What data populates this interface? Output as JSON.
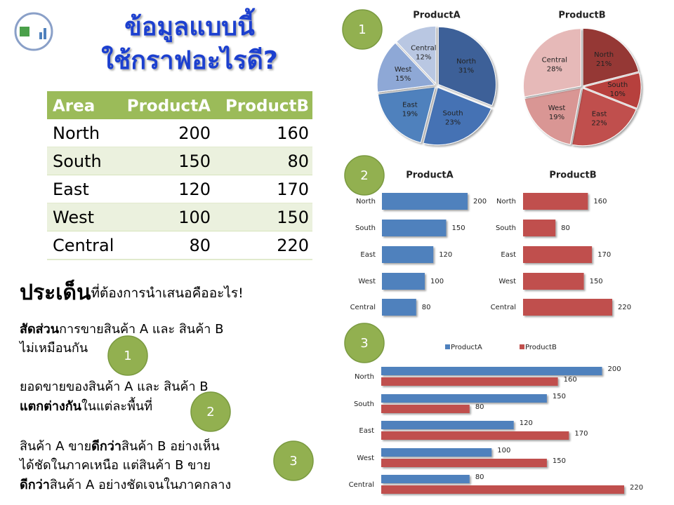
{
  "title": [
    "ข้อมูลแบบนี้",
    "ใช้กราฟอะไรดี?"
  ],
  "table": {
    "header": [
      "Area",
      "ProductA",
      "ProductB"
    ],
    "rows": [
      [
        "North",
        200,
        160
      ],
      [
        "South",
        150,
        80
      ],
      [
        "East",
        120,
        170
      ],
      [
        "West",
        100,
        150
      ],
      [
        "Central",
        80,
        220
      ]
    ]
  },
  "question": {
    "bold": "ประเด็น",
    "rest": "ที่ต้องการนำเสนอคืออะไร!"
  },
  "points": [
    {
      "number": "1",
      "lines": [
        [
          {
            "text": "สัดส่วน",
            "bold": true
          },
          {
            "text": "การขายสินค้า  A และ  สินค้า  B"
          }
        ],
        [
          {
            "text": "ไม่เหมือนกัน"
          }
        ]
      ]
    },
    {
      "number": "2",
      "lines": [
        [
          {
            "text": "ยอดขายของสินค้า  A และ  สินค้า  B"
          }
        ],
        [
          {
            "text": "แตกต่างกัน",
            "bold": true
          },
          {
            "text": "ในแต่ละพื้นที่"
          }
        ]
      ]
    },
    {
      "number": "3",
      "lines": [
        [
          {
            "text": "สินค้า  A ขาย"
          },
          {
            "text": "ดีกว่า",
            "bold": true
          },
          {
            "text": "สินค้า  B อย่างเห็น"
          }
        ],
        [
          {
            "text": "ได้ชัดในภาคเหนือ  แต่สินค้า  B ขาย"
          }
        ],
        [
          {
            "text": "ดีกว่า",
            "bold": true
          },
          {
            "text": "สินค้า  A อย่างชัดเจนในภาคกลาง"
          }
        ]
      ]
    }
  ],
  "chart_data": [
    {
      "type": "pie",
      "title": "ProductA",
      "categories": [
        "North",
        "South",
        "East",
        "West",
        "Central"
      ],
      "values": [
        31,
        23,
        19,
        15,
        12
      ],
      "value_labels": [
        "31%",
        "23%",
        "19%",
        "15%",
        "12%"
      ],
      "colors": [
        "#3c6198",
        "#4472b4",
        "#4f81bd",
        "#8ea8d6",
        "#b9c7e2"
      ]
    },
    {
      "type": "pie",
      "title": "ProductB",
      "categories": [
        "North",
        "South",
        "East",
        "West",
        "Central"
      ],
      "values": [
        21,
        10,
        22,
        19,
        28
      ],
      "value_labels": [
        "21%",
        "10%",
        "22%",
        "19%",
        "28%"
      ],
      "colors": [
        "#953735",
        "#b7403d",
        "#c0504d",
        "#d99694",
        "#e6b9b8"
      ]
    },
    {
      "type": "hbar",
      "title": "ProductA",
      "categories": [
        "North",
        "South",
        "East",
        "West",
        "Central"
      ],
      "values": [
        200,
        150,
        120,
        100,
        80
      ],
      "color": "#4f81bd"
    },
    {
      "type": "hbar",
      "title": "ProductB",
      "categories": [
        "North",
        "South",
        "East",
        "West",
        "Central"
      ],
      "values": [
        160,
        80,
        170,
        150,
        220
      ],
      "color": "#c0504d"
    },
    {
      "type": "grouped_hbar",
      "categories": [
        "North",
        "South",
        "East",
        "West",
        "Central"
      ],
      "legend": "top",
      "series": [
        {
          "name": "ProductA",
          "color": "#4f81bd",
          "values": [
            200,
            150,
            120,
            100,
            80
          ]
        },
        {
          "name": "ProductB",
          "color": "#c0504d",
          "values": [
            160,
            80,
            170,
            150,
            220
          ]
        }
      ]
    }
  ]
}
